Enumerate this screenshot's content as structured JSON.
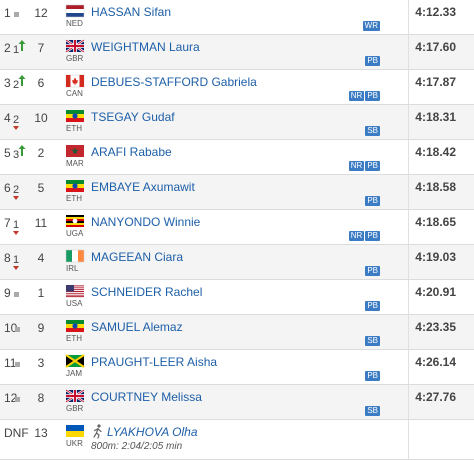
{
  "results": {
    "rows": [
      {
        "rank": "1",
        "trend": "steady",
        "bib": "12",
        "country": "NED",
        "name": "HASSAN Sifan",
        "badges": [
          "WR"
        ],
        "time": "4:12.33"
      },
      {
        "rank": "2",
        "change": "1",
        "trend": "up",
        "bib": "7",
        "country": "GBR",
        "name": "WEIGHTMAN Laura",
        "badges": [
          "PB"
        ],
        "time": "4:17.60"
      },
      {
        "rank": "3",
        "change": "2",
        "trend": "up",
        "bib": "6",
        "country": "CAN",
        "name": "DEBUES-STAFFORD Gabriela",
        "badges": [
          "NR",
          "PB"
        ],
        "time": "4:17.87"
      },
      {
        "rank": "4",
        "change": "2",
        "trend": "down",
        "bib": "10",
        "country": "ETH",
        "name": "TSEGAY Gudaf",
        "badges": [
          "SB"
        ],
        "time": "4:18.31"
      },
      {
        "rank": "5",
        "change": "3",
        "trend": "up",
        "bib": "2",
        "country": "MAR",
        "name": "ARAFI Rababe",
        "badges": [
          "NR",
          "PB"
        ],
        "time": "4:18.42"
      },
      {
        "rank": "6",
        "change": "2",
        "trend": "down",
        "bib": "5",
        "country": "ETH",
        "name": "EMBAYE Axumawit",
        "badges": [
          "PB"
        ],
        "time": "4:18.58"
      },
      {
        "rank": "7",
        "change": "1",
        "trend": "down",
        "bib": "11",
        "country": "UGA",
        "name": "NANYONDO Winnie",
        "badges": [
          "NR",
          "PB"
        ],
        "time": "4:18.65"
      },
      {
        "rank": "8",
        "change": "1",
        "trend": "down",
        "bib": "4",
        "country": "IRL",
        "name": "MAGEEAN Ciara",
        "badges": [
          "PB"
        ],
        "time": "4:19.03"
      },
      {
        "rank": "9",
        "trend": "steady",
        "bib": "1",
        "country": "USA",
        "name": "SCHNEIDER Rachel",
        "badges": [
          "PB"
        ],
        "time": "4:20.91"
      },
      {
        "rank": "10",
        "trend": "steady",
        "bib": "9",
        "country": "ETH",
        "name": "SAMUEL Alemaz",
        "badges": [
          "SB"
        ],
        "time": "4:23.35"
      },
      {
        "rank": "11",
        "trend": "steady",
        "bib": "3",
        "country": "JAM",
        "name": "PRAUGHT-LEER Aisha",
        "badges": [
          "PB"
        ],
        "time": "4:26.14"
      },
      {
        "rank": "12",
        "trend": "steady",
        "bib": "8",
        "country": "GBR",
        "name": "COURTNEY Melissa",
        "badges": [
          "SB"
        ],
        "time": "4:27.76"
      },
      {
        "rank": "DNF",
        "bib": "13",
        "country": "UKR",
        "name": "LYAKHOVA Olha",
        "note": "800m: 2:04/2:05 min"
      }
    ]
  }
}
